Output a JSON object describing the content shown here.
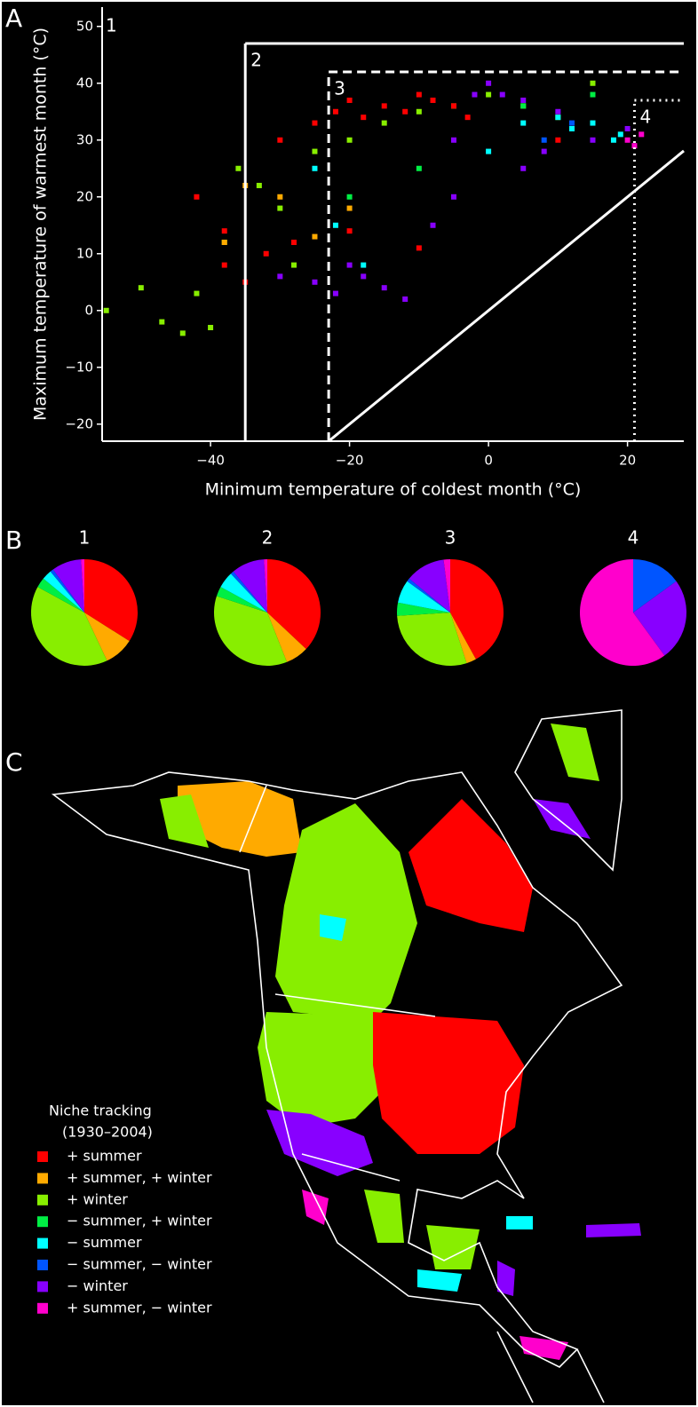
{
  "chart_data": [
    {
      "type": "scatter",
      "panel": "A",
      "xlabel": "Minimum temperature of coldest month (°C)",
      "ylabel": "Maximum temperature of warmest month (°C)",
      "xlim": [
        -55.6,
        28.1
      ],
      "xticks": [
        {
          "value": -40,
          "label": "−40"
        },
        {
          "value": -20,
          "label": "−20"
        },
        0,
        20
      ],
      "ylim": [
        -23,
        53.4
      ],
      "yticks": [
        {
          "value": -20,
          "label": "−20"
        },
        {
          "value": -10,
          "label": "−10"
        },
        0,
        10,
        20,
        30,
        40,
        50
      ],
      "regions": [
        {
          "label": "1"
        },
        {
          "label": "2",
          "x": -35,
          "y": 47,
          "style": "solid"
        },
        {
          "label": "3",
          "x": -23,
          "y": 42,
          "style": "dashed"
        },
        {
          "label": "4",
          "x": 21,
          "y": 37,
          "style": "dotted"
        }
      ],
      "series": [
        {
          "color": "#88ee00",
          "x": [
            -55,
            -50,
            -47,
            -44,
            -40,
            -36,
            -33,
            -30,
            -25,
            -20,
            -15,
            -10,
            -5,
            0,
            5,
            10,
            15,
            -38,
            -42,
            -28
          ],
          "y": [
            0,
            4,
            -2,
            -4,
            -3,
            25,
            22,
            18,
            28,
            30,
            33,
            35,
            36,
            38,
            36,
            34,
            40,
            12,
            3,
            8
          ]
        },
        {
          "color": "#ff0000",
          "x": [
            -42,
            -38,
            -35,
            -30,
            -25,
            -22,
            -20,
            -18,
            -15,
            -12,
            -10,
            -8,
            -5,
            -3,
            -38,
            -32,
            -28,
            -20,
            -10,
            10
          ],
          "y": [
            20,
            14,
            5,
            30,
            33,
            35,
            37,
            34,
            36,
            35,
            38,
            37,
            36,
            34,
            8,
            10,
            12,
            14,
            11,
            30
          ]
        },
        {
          "color": "#8800ff",
          "x": [
            -30,
            -25,
            -22,
            -20,
            -18,
            -12,
            -8,
            -5,
            -2,
            0,
            2,
            5,
            8,
            10,
            12,
            15,
            -15,
            -5,
            5,
            20
          ],
          "y": [
            6,
            5,
            3,
            8,
            6,
            2,
            15,
            30,
            38,
            40,
            38,
            37,
            28,
            35,
            32,
            30,
            4,
            20,
            25,
            32
          ]
        },
        {
          "color": "#00ffff",
          "x": [
            -25,
            -22,
            5,
            10,
            12,
            15,
            18,
            19,
            -18,
            0
          ],
          "y": [
            25,
            15,
            33,
            34,
            32,
            33,
            30,
            31,
            8,
            28
          ]
        },
        {
          "color": "#ffaa00",
          "x": [
            -35,
            -30,
            -38,
            -20,
            -25
          ],
          "y": [
            22,
            20,
            12,
            18,
            13
          ]
        },
        {
          "color": "#00ee44",
          "x": [
            -20,
            -10,
            5,
            15
          ],
          "y": [
            20,
            25,
            36,
            38
          ]
        },
        {
          "color": "#0055ff",
          "x": [
            8,
            12
          ],
          "y": [
            30,
            33
          ]
        },
        {
          "color": "#ff00cc",
          "x": [
            20,
            22,
            21
          ],
          "y": [
            30,
            31,
            29
          ]
        }
      ]
    },
    {
      "type": "pie",
      "panel": "B",
      "title": "1",
      "values": [
        34,
        9,
        40,
        3,
        3,
        1,
        9,
        1
      ],
      "colors": [
        "#ff0000",
        "#ffaa00",
        "#88ee00",
        "#00ee44",
        "#00ffff",
        "#0055ff",
        "#8800ff",
        "#ff00cc"
      ]
    },
    {
      "type": "pie",
      "title": "2",
      "values": [
        37,
        7,
        36,
        3,
        5,
        1,
        10,
        1
      ],
      "colors": [
        "#ff0000",
        "#ffaa00",
        "#88ee00",
        "#00ee44",
        "#00ffff",
        "#0055ff",
        "#8800ff",
        "#ff00cc"
      ]
    },
    {
      "type": "pie",
      "title": "3",
      "values": [
        42,
        3,
        29,
        4,
        7,
        1,
        12,
        2
      ],
      "colors": [
        "#ff0000",
        "#ffaa00",
        "#88ee00",
        "#00ee44",
        "#00ffff",
        "#0055ff",
        "#8800ff",
        "#ff00cc"
      ]
    },
    {
      "type": "pie",
      "title": "4",
      "values": [
        15,
        25,
        60
      ],
      "colors": [
        "#0055ff",
        "#8800ff",
        "#ff00cc"
      ]
    },
    {
      "type": "map",
      "panel": "C",
      "title": "Niche tracking",
      "subtitle": "(1930–2004)",
      "legend": [
        {
          "name": "+ summer",
          "color": "#ff0000"
        },
        {
          "name": "+ summer, + winter",
          "color": "#ffaa00"
        },
        {
          "name": "+ winter",
          "color": "#88ee00"
        },
        {
          "name": "− summer, + winter",
          "color": "#00ee44"
        },
        {
          "name": "− summer",
          "color": "#00ffff"
        },
        {
          "name": "− summer, − winter",
          "color": "#0055ff"
        },
        {
          "name": "− winter",
          "color": "#8800ff"
        },
        {
          "name": "+ summer, − winter",
          "color": "#ff00cc"
        }
      ]
    }
  ]
}
